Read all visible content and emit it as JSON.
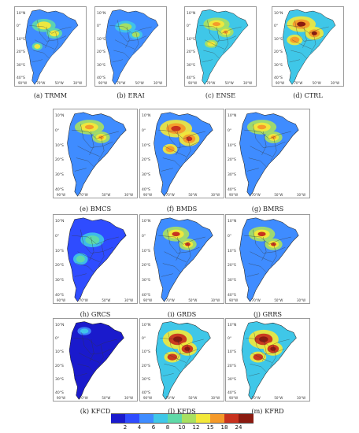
{
  "panels": [
    {
      "key": "a",
      "caption": "(a) TRMM",
      "style": "obs"
    },
    {
      "key": "b",
      "caption": "(b) ERAI",
      "style": "obs_light"
    },
    {
      "key": "c",
      "caption": "(c) ENSE",
      "style": "ense"
    },
    {
      "key": "d",
      "caption": "(d) CTRL",
      "style": "high"
    },
    {
      "key": "e",
      "caption": "(e) BMCS",
      "style": "bm"
    },
    {
      "key": "f",
      "caption": "(f) BMDS",
      "style": "bm_high"
    },
    {
      "key": "g",
      "caption": "(g) BMRS",
      "style": "bm"
    },
    {
      "key": "h",
      "caption": "(h) GRCS",
      "style": "gr_low"
    },
    {
      "key": "i",
      "caption": "(i) GRDS",
      "style": "gr"
    },
    {
      "key": "j",
      "caption": "(j) GRRS",
      "style": "gr"
    },
    {
      "key": "k",
      "caption": "(k) KFCD",
      "style": "dry"
    },
    {
      "key": "l",
      "caption": "(l) KFDS",
      "style": "kf_high"
    },
    {
      "key": "m",
      "caption": "(m) KFRD",
      "style": "kf_high"
    }
  ],
  "lat_labels": [
    "10°N",
    "0°",
    "10°S",
    "20°S",
    "30°S",
    "40°S",
    "50°S"
  ],
  "lon_labels": [
    "90°W",
    "80°W",
    "70°W",
    "60°W",
    "50°W",
    "40°W",
    "30°W"
  ],
  "colorbar": {
    "ticks": [
      "2",
      "4",
      "6",
      "8",
      "10",
      "12",
      "15",
      "18",
      "24"
    ],
    "colors": [
      "#1a1acc",
      "#2f4cff",
      "#3f8cff",
      "#3fc7e8",
      "#5fd9a8",
      "#a8e060",
      "#f3e83a",
      "#f59a2a",
      "#c8321e",
      "#8a1a10"
    ]
  }
}
